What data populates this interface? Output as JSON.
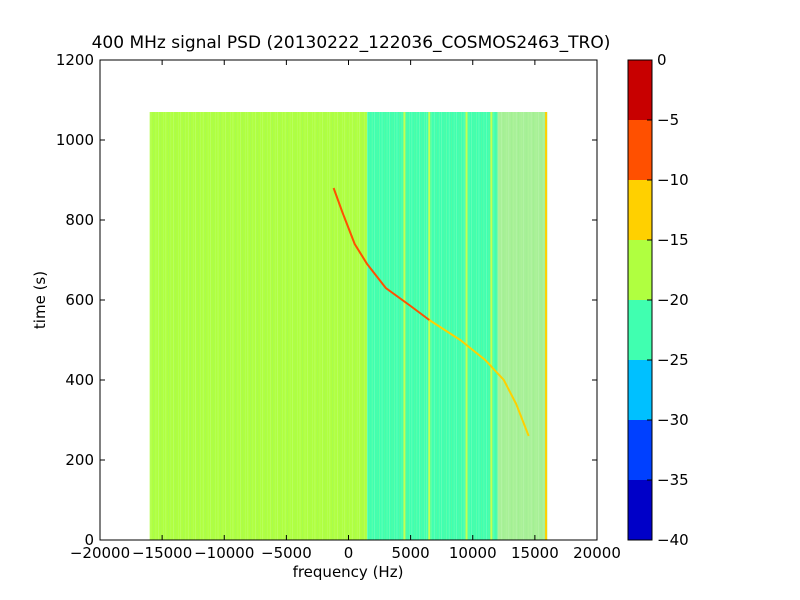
{
  "chart_data": {
    "type": "heatmap",
    "title": "400 MHz signal PSD (20130222_122036_COSMOS2463_TRO)",
    "xlabel": "frequency (Hz)",
    "ylabel": "time (s)",
    "xlim": [
      -20000,
      20000
    ],
    "ylim": [
      0,
      1200
    ],
    "x_ticks": [
      -20000,
      -15000,
      -10000,
      -5000,
      0,
      5000,
      10000,
      15000,
      20000
    ],
    "y_ticks": [
      0,
      200,
      400,
      600,
      800,
      1000,
      1200
    ],
    "data_extent": {
      "x": [
        -16000,
        16000
      ],
      "y": [
        0,
        1070
      ]
    },
    "grid": false,
    "colorbar": {
      "levels": [
        -40,
        -35,
        -30,
        -25,
        -20,
        -15,
        -10,
        -5,
        0
      ],
      "colors": [
        "#0000c8",
        "#0040ff",
        "#00c0ff",
        "#40ffb0",
        "#b0ff40",
        "#ffd000",
        "#ff5000",
        "#c80000"
      ]
    },
    "background_bands": [
      {
        "x": [
          -16000,
          1500
        ],
        "color": "#b0ff40"
      },
      {
        "x": [
          1500,
          12000
        ],
        "color": "#40ffb0"
      },
      {
        "x": [
          12000,
          16000
        ],
        "color": "#a8f098"
      }
    ],
    "vertical_lines": [
      {
        "x": 4500,
        "color": "#c8ff50"
      },
      {
        "x": 6500,
        "color": "#c8ff50"
      },
      {
        "x": 9500,
        "color": "#c8ff50"
      },
      {
        "x": 11500,
        "color": "#c8ff50"
      },
      {
        "x": 15900,
        "color": "#ffd000"
      }
    ],
    "signal_track": {
      "segments": [
        {
          "color": "#ff5000",
          "points": [
            [
              -1200,
              880
            ],
            [
              -500,
              820
            ],
            [
              500,
              740
            ],
            [
              1500,
              690
            ],
            [
              3000,
              630
            ],
            [
              5000,
              585
            ],
            [
              6500,
              550
            ]
          ]
        },
        {
          "color": "#ffd000",
          "points": [
            [
              6500,
              550
            ],
            [
              9000,
              500
            ],
            [
              11000,
              450
            ],
            [
              12500,
              400
            ],
            [
              13500,
              340
            ],
            [
              14500,
              260
            ]
          ]
        }
      ]
    }
  }
}
